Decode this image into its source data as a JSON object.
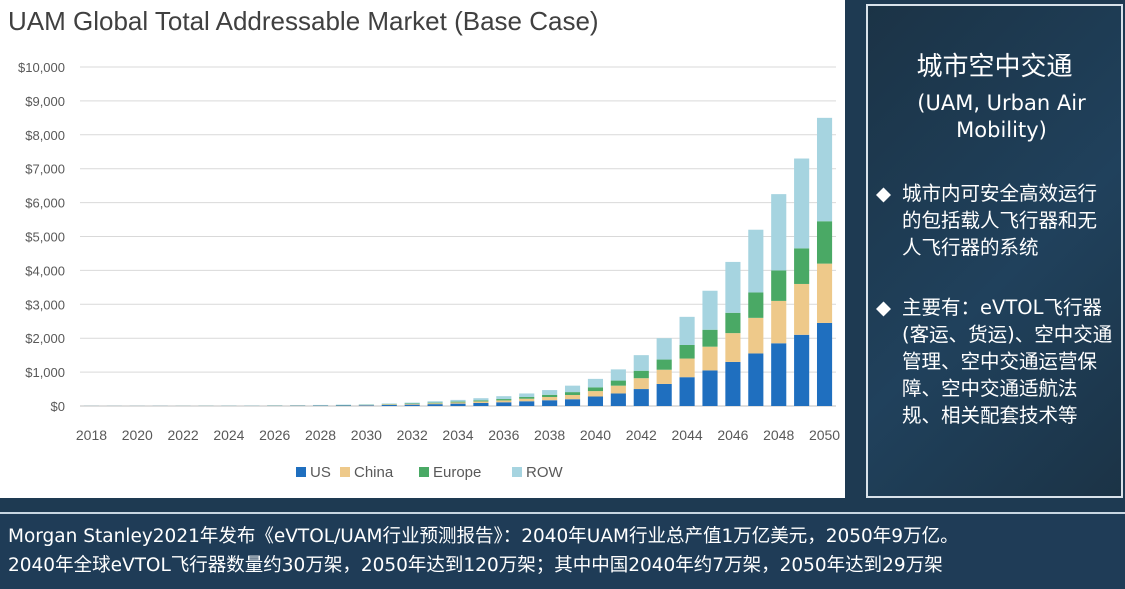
{
  "chart_data": {
    "type": "bar",
    "stacked": true,
    "title": "UAM Global Total Addressable Market (Base Case)",
    "categories": [
      "2018",
      "2019",
      "2020",
      "2021",
      "2022",
      "2023",
      "2024",
      "2025",
      "2026",
      "2027",
      "2028",
      "2029",
      "2030",
      "2031",
      "2032",
      "2033",
      "2034",
      "2035",
      "2036",
      "2037",
      "2038",
      "2039",
      "2040",
      "2041",
      "2042",
      "2043",
      "2044",
      "2045",
      "2046",
      "2047",
      "2048",
      "2049",
      "2050"
    ],
    "x_tick_labels": [
      "2018",
      "2020",
      "2022",
      "2024",
      "2026",
      "2028",
      "2030",
      "2032",
      "2034",
      "2036",
      "2038",
      "2040",
      "2042",
      "2044",
      "2046",
      "2048",
      "2050"
    ],
    "y_tick_labels": [
      "$0",
      "$1,000",
      "$2,000",
      "$3,000",
      "$4,000",
      "$5,000",
      "$6,000",
      "$7,000",
      "$8,000",
      "$9,000",
      "$10,000"
    ],
    "ylim": [
      0,
      10000
    ],
    "grid": true,
    "legend_position": "bottom",
    "series": [
      {
        "name": "US",
        "color": "#1f6fbf",
        "values": [
          2,
          2,
          2,
          3,
          3,
          4,
          5,
          6,
          8,
          10,
          12,
          15,
          20,
          30,
          40,
          55,
          70,
          90,
          110,
          140,
          170,
          200,
          280,
          370,
          500,
          650,
          850,
          1050,
          1300,
          1550,
          1850,
          2100,
          2450
        ]
      },
      {
        "name": "China",
        "color": "#eec98a",
        "values": [
          1,
          1,
          1,
          1,
          2,
          2,
          2,
          3,
          4,
          5,
          6,
          8,
          10,
          15,
          20,
          25,
          35,
          45,
          55,
          75,
          95,
          125,
          160,
          230,
          320,
          420,
          550,
          700,
          850,
          1050,
          1250,
          1500,
          1750
        ]
      },
      {
        "name": "Europe",
        "color": "#4aa965",
        "values": [
          1,
          1,
          1,
          1,
          1,
          2,
          2,
          2,
          3,
          4,
          5,
          6,
          8,
          10,
          15,
          20,
          25,
          30,
          40,
          50,
          65,
          85,
          110,
          150,
          220,
          300,
          400,
          500,
          600,
          750,
          900,
          1050,
          1250
        ]
      },
      {
        "name": "ROW",
        "color": "#a6d4e0",
        "values": [
          1,
          1,
          1,
          1,
          2,
          2,
          3,
          4,
          5,
          6,
          8,
          11,
          12,
          20,
          25,
          40,
          50,
          65,
          85,
          105,
          140,
          190,
          250,
          330,
          460,
          630,
          830,
          1150,
          1500,
          1850,
          2250,
          2650,
          3050
        ]
      }
    ]
  },
  "side_panel": {
    "title": "城市空中交通",
    "subtitle": "(UAM, Urban Air Mobility)",
    "bullet_mark": "◆",
    "bullets": [
      "城市内可安全高效运行的包括载人飞行器和无人飞行器的系统",
      "主要有：eVTOL飞行器(客运、货运)、空中交通管理、空中交通运营保障、空中交通适航法规、相关配套技术等"
    ]
  },
  "footer": {
    "line1": "Morgan Stanley2021年发布《eVTOL/UAM行业预测报告》：2040年UAM行业总产值1万亿美元，2050年9万亿。",
    "line2": "2040年全球eVTOL飞行器数量约30万架，2050年达到120万架；其中中国2040年约7万架，2050年达到29万架"
  }
}
